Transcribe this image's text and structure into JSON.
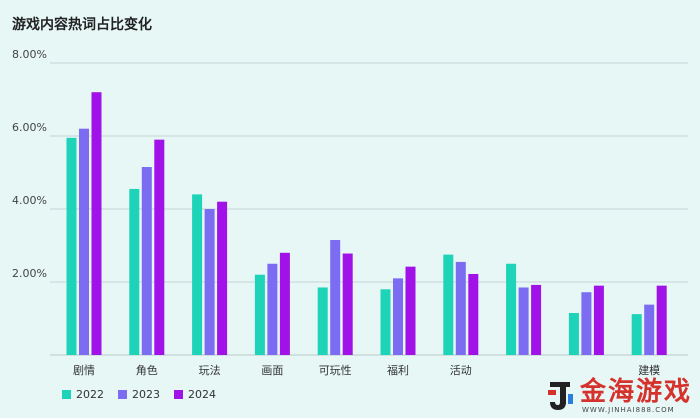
{
  "chart_data": {
    "type": "bar",
    "title": "游戏内容热词占比变化",
    "categories": [
      "剧情",
      "角色",
      "玩法",
      "画面",
      "可玩性",
      "福利",
      "活动",
      "",
      "",
      "建模"
    ],
    "series": [
      {
        "name": "2022",
        "color": "#1dd3b8",
        "values": [
          5.95,
          4.55,
          4.4,
          2.2,
          1.85,
          1.8,
          2.75,
          2.5,
          1.15,
          1.12
        ]
      },
      {
        "name": "2023",
        "color": "#7b6cf2",
        "values": [
          6.2,
          5.15,
          4.0,
          2.5,
          3.15,
          2.1,
          2.55,
          1.85,
          1.72,
          1.38
        ]
      },
      {
        "name": "2024",
        "color": "#a012e8",
        "values": [
          7.2,
          5.9,
          4.2,
          2.8,
          2.78,
          2.42,
          2.22,
          1.92,
          1.9,
          1.9
        ]
      }
    ],
    "ylim": [
      0,
      8
    ],
    "yticks": [
      {
        "value": 2,
        "label": "2.00%"
      },
      {
        "value": 4,
        "label": "4.00%"
      },
      {
        "value": 6,
        "label": "6.00%"
      },
      {
        "value": 8,
        "label": "8.00%"
      }
    ],
    "grid": true,
    "legend_position": "bottom-left"
  },
  "watermark": {
    "text": "金海游戏",
    "url": "WWW.JINHAI888.COM",
    "logo_icon": "j-letter-logo"
  }
}
